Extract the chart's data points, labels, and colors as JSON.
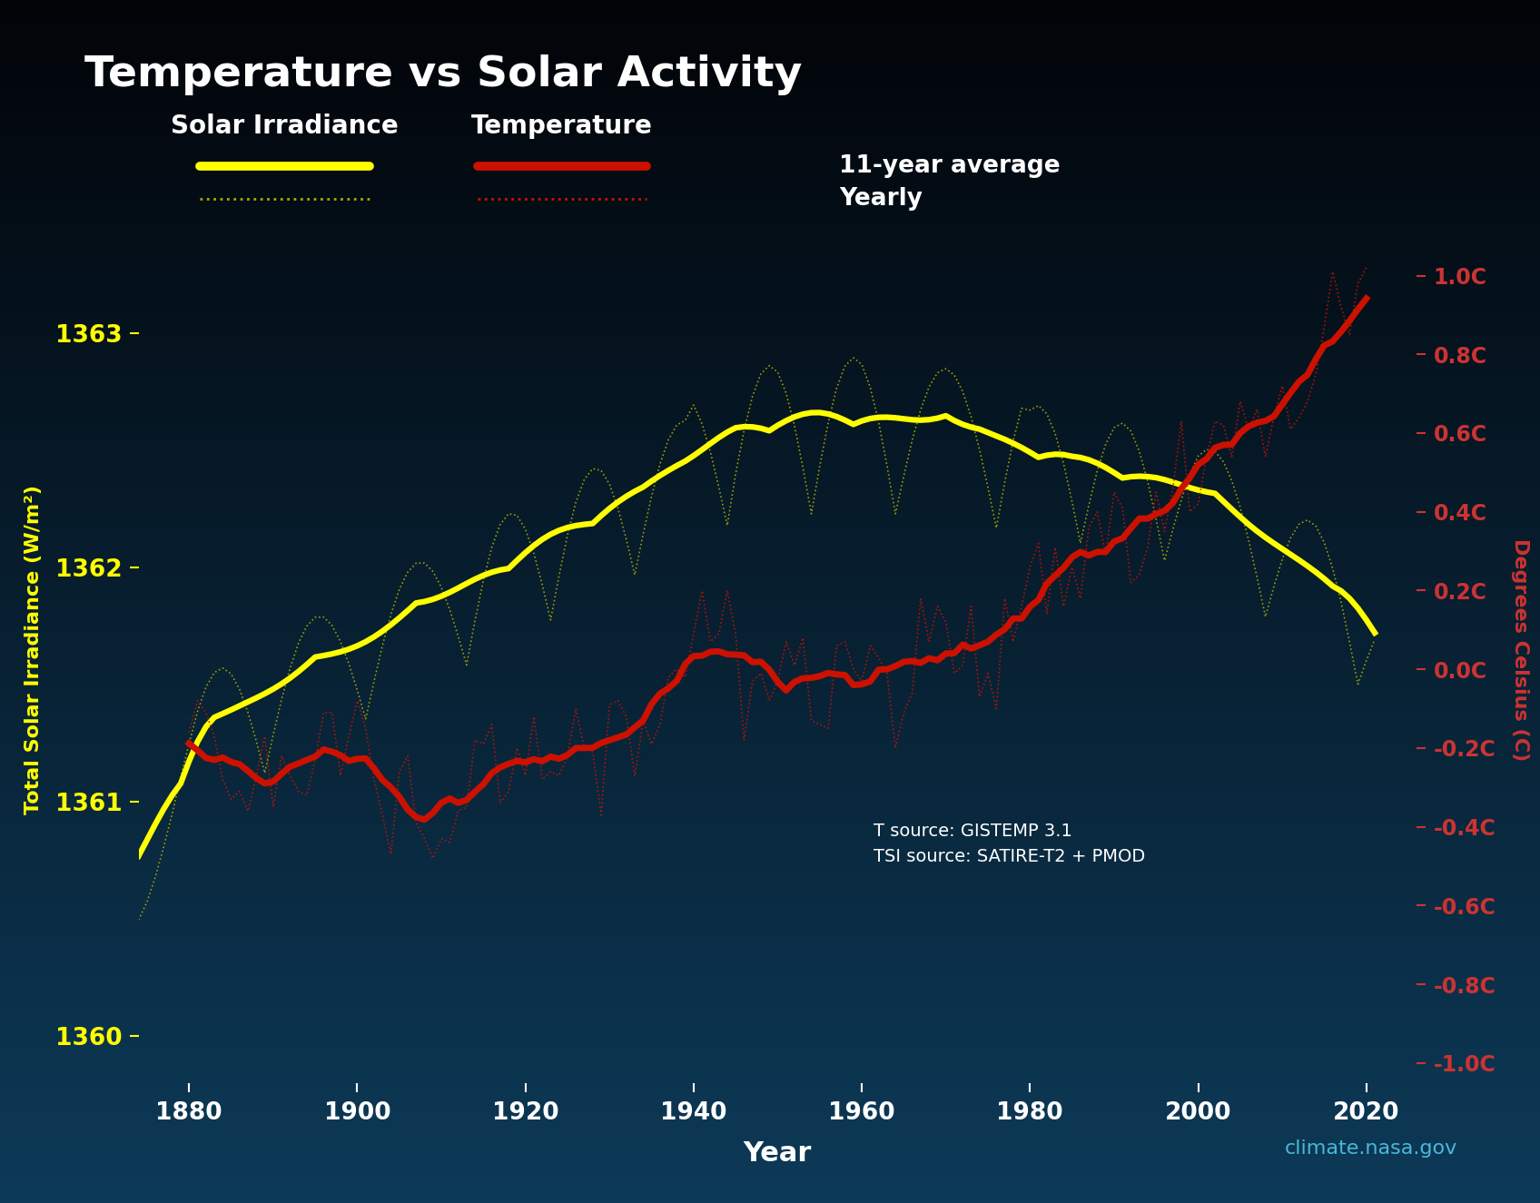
{
  "title": "Temperature vs Solar Activity",
  "xlabel": "Year",
  "ylabel_left": "Total Solar Irradiance (W/m^2)",
  "ylabel_right": "Degrees Celsius (C)",
  "bg_color_top": "#050505",
  "bg_color_bottom": "#0a3050",
  "title_color": "#ffffff",
  "axis_color": "#ffffff",
  "tick_color_left": "#ffff00",
  "tick_color_right": "#cc3333",
  "xlabel_color": "#ffffff",
  "ylabel_left_color": "#ffff00",
  "ylabel_right_color": "#cc3333",
  "source_text": "T source: GISTEMP 3.1\nTSI source: SATIRE-T2 + PMOD",
  "source_color": "#ffffff",
  "website_text": "climate.nasa.gov",
  "website_color": "#4ab8d8",
  "ylim_left": [
    1359.8,
    1363.5
  ],
  "ylim_right": [
    -1.05,
    1.15
  ],
  "yticks_left": [
    1360,
    1361,
    1362,
    1363
  ],
  "ytick_labels_left": [
    "1360",
    "1361",
    "1362",
    "1363"
  ],
  "yticks_right": [
    -1.0,
    -0.8,
    -0.6,
    -0.4,
    -0.2,
    0.0,
    0.2,
    0.4,
    0.6,
    0.8,
    1.0
  ],
  "ytick_labels_right": [
    "-1.0C",
    "-0.8C",
    "-0.6C",
    "-0.4C",
    "-0.2C",
    "0.0C",
    "0.2C",
    "0.4C",
    "0.6C",
    "0.8C",
    "1.0C"
  ],
  "xticks": [
    1880,
    1900,
    1920,
    1940,
    1960,
    1980,
    2000,
    2020
  ],
  "xlim": [
    1874,
    2026
  ],
  "color_tsi_avg": "#ffff00",
  "color_tsi_yearly": "#aaaa00",
  "color_temp_avg": "#cc1100",
  "color_temp_yearly": "#cc1100",
  "lw_tsi_avg": 4.5,
  "lw_tsi_yearly": 1.2,
  "lw_temp_avg": 5.0,
  "lw_temp_yearly": 1.2,
  "legend_label_solar": "Solar Irradiance",
  "legend_label_temp": "Temperature",
  "legend_label_11yr": "11-year average",
  "legend_label_yearly": "Yearly"
}
